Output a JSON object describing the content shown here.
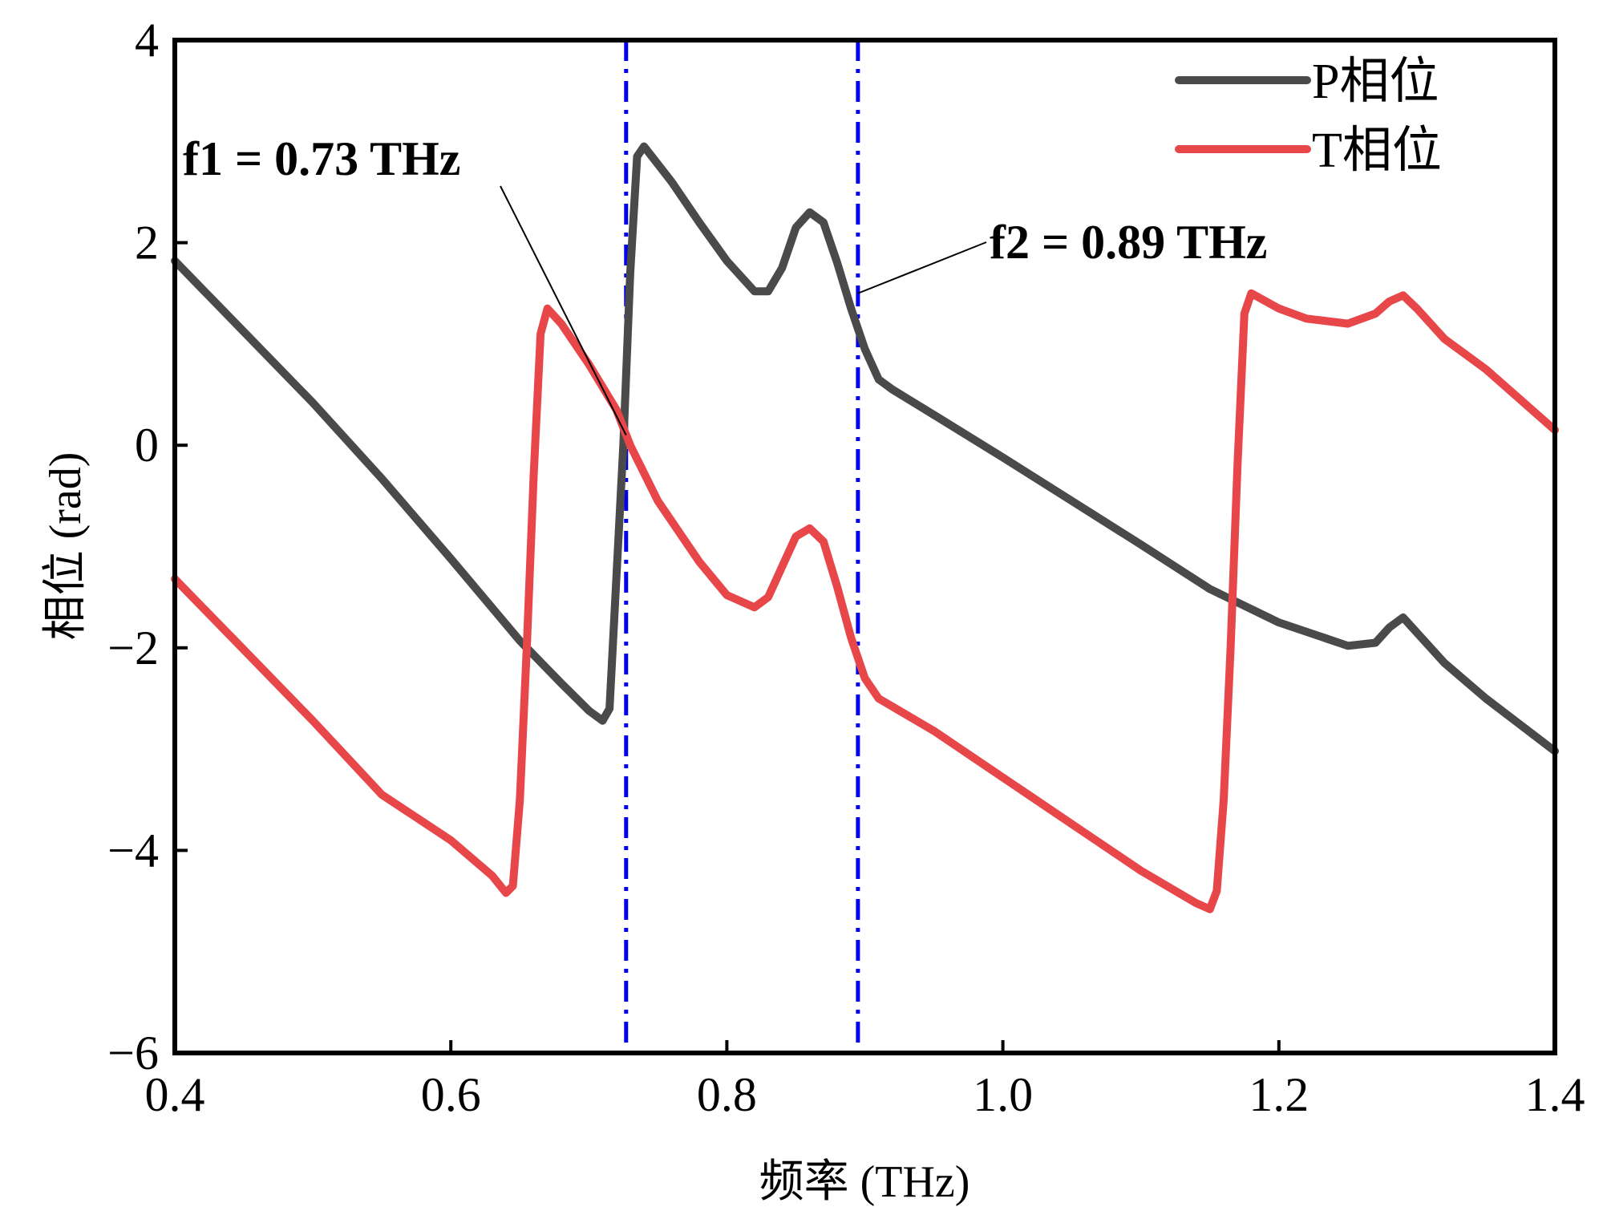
{
  "chart_data": {
    "type": "line",
    "xlabel": "频率 (THz)",
    "ylabel": "相位 (rad)",
    "xlim": [
      0.4,
      1.4
    ],
    "ylim": [
      -6,
      4
    ],
    "xticks": [
      "0.4",
      "0.6",
      "0.8",
      "1.0",
      "1.2",
      "1.4"
    ],
    "xtick_values": [
      0.4,
      0.6,
      0.8,
      1.0,
      1.2,
      1.4
    ],
    "yticks": [
      "−6",
      "−4",
      "−2",
      "0",
      "2",
      "4"
    ],
    "ytick_values": [
      -6,
      -4,
      -2,
      0,
      2,
      4
    ],
    "grid": false,
    "legend_position": "top-right",
    "series": [
      {
        "name": "P相位",
        "color": "#4a4a4a",
        "points": [
          [
            0.4,
            1.82
          ],
          [
            0.45,
            1.12
          ],
          [
            0.5,
            0.42
          ],
          [
            0.55,
            -0.33
          ],
          [
            0.6,
            -1.12
          ],
          [
            0.65,
            -1.93
          ],
          [
            0.68,
            -2.35
          ],
          [
            0.7,
            -2.62
          ],
          [
            0.71,
            -2.72
          ],
          [
            0.715,
            -2.6
          ],
          [
            0.72,
            -1.3
          ],
          [
            0.725,
            0.0
          ],
          [
            0.73,
            1.7
          ],
          [
            0.735,
            2.85
          ],
          [
            0.74,
            2.95
          ],
          [
            0.76,
            2.6
          ],
          [
            0.78,
            2.2
          ],
          [
            0.8,
            1.82
          ],
          [
            0.82,
            1.52
          ],
          [
            0.83,
            1.52
          ],
          [
            0.84,
            1.75
          ],
          [
            0.85,
            2.15
          ],
          [
            0.86,
            2.3
          ],
          [
            0.87,
            2.2
          ],
          [
            0.88,
            1.8
          ],
          [
            0.89,
            1.35
          ],
          [
            0.9,
            0.95
          ],
          [
            0.91,
            0.65
          ],
          [
            0.92,
            0.55
          ],
          [
            0.95,
            0.3
          ],
          [
            1.0,
            -0.12
          ],
          [
            1.05,
            -0.55
          ],
          [
            1.1,
            -0.98
          ],
          [
            1.15,
            -1.42
          ],
          [
            1.2,
            -1.75
          ],
          [
            1.25,
            -1.98
          ],
          [
            1.27,
            -1.95
          ],
          [
            1.28,
            -1.8
          ],
          [
            1.29,
            -1.7
          ],
          [
            1.3,
            -1.85
          ],
          [
            1.32,
            -2.15
          ],
          [
            1.35,
            -2.5
          ],
          [
            1.4,
            -3.02
          ]
        ]
      },
      {
        "name": "T相位",
        "color": "#e8474a",
        "points": [
          [
            0.4,
            -1.32
          ],
          [
            0.45,
            -2.02
          ],
          [
            0.5,
            -2.72
          ],
          [
            0.55,
            -3.45
          ],
          [
            0.6,
            -3.9
          ],
          [
            0.63,
            -4.25
          ],
          [
            0.64,
            -4.42
          ],
          [
            0.645,
            -4.35
          ],
          [
            0.65,
            -3.5
          ],
          [
            0.655,
            -2.0
          ],
          [
            0.66,
            -0.3
          ],
          [
            0.665,
            1.1
          ],
          [
            0.67,
            1.35
          ],
          [
            0.68,
            1.2
          ],
          [
            0.7,
            0.8
          ],
          [
            0.72,
            0.35
          ],
          [
            0.73,
            0.0
          ],
          [
            0.75,
            -0.55
          ],
          [
            0.78,
            -1.15
          ],
          [
            0.8,
            -1.48
          ],
          [
            0.82,
            -1.6
          ],
          [
            0.83,
            -1.5
          ],
          [
            0.84,
            -1.2
          ],
          [
            0.85,
            -0.9
          ],
          [
            0.86,
            -0.82
          ],
          [
            0.87,
            -0.95
          ],
          [
            0.88,
            -1.4
          ],
          [
            0.89,
            -1.9
          ],
          [
            0.9,
            -2.3
          ],
          [
            0.91,
            -2.5
          ],
          [
            0.92,
            -2.58
          ],
          [
            0.95,
            -2.82
          ],
          [
            1.0,
            -3.28
          ],
          [
            1.05,
            -3.74
          ],
          [
            1.1,
            -4.2
          ],
          [
            1.14,
            -4.52
          ],
          [
            1.15,
            -4.58
          ],
          [
            1.155,
            -4.4
          ],
          [
            1.16,
            -3.5
          ],
          [
            1.165,
            -2.0
          ],
          [
            1.17,
            -0.2
          ],
          [
            1.175,
            1.3
          ],
          [
            1.18,
            1.5
          ],
          [
            1.2,
            1.35
          ],
          [
            1.22,
            1.25
          ],
          [
            1.25,
            1.2
          ],
          [
            1.27,
            1.3
          ],
          [
            1.28,
            1.42
          ],
          [
            1.29,
            1.48
          ],
          [
            1.3,
            1.35
          ],
          [
            1.32,
            1.05
          ],
          [
            1.35,
            0.75
          ],
          [
            1.4,
            0.15
          ]
        ]
      }
    ],
    "vlines": [
      {
        "x": 0.727,
        "color": "#0000ee",
        "style": "dash-dot"
      },
      {
        "x": 0.895,
        "color": "#0000ee",
        "style": "dash-dot"
      }
    ],
    "annotations": [
      {
        "text": "f1 = 0.73 THz",
        "target": [
          0.727,
          0.1
        ]
      },
      {
        "text": "f2 = 0.89 THz",
        "target": [
          0.895,
          1.5
        ]
      }
    ]
  }
}
